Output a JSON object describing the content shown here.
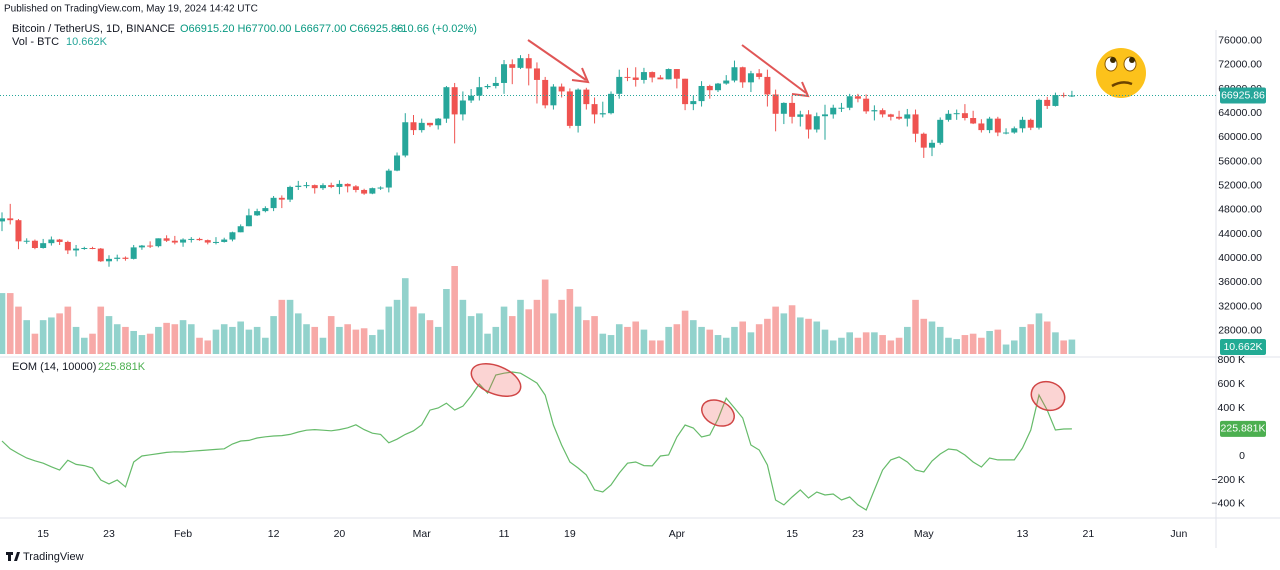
{
  "header": {
    "published": "Published on TradingView.com, May 19, 2024 14:42 UTC"
  },
  "footer": {
    "brand": "TradingView"
  },
  "chart_data": {
    "type": "candlestick",
    "title": "Bitcoin / TetherUS, 1D, BINANCE",
    "legend_ohlc": "O66915.20 H67700.00 L66677.00 C66925.86",
    "legend_change": "+10.66 (+0.02%)",
    "up_color": "#26a69a",
    "down_color": "#ef5350",
    "ylim": [
      24000,
      77760
    ],
    "yticks": [
      {
        "value": 76000,
        "label": "76000.00"
      },
      {
        "value": 72000,
        "label": "72000.00"
      },
      {
        "value": 68000,
        "label": "68000.00"
      },
      {
        "value": 64000,
        "label": "64000.00"
      },
      {
        "value": 60000,
        "label": "60000.00"
      },
      {
        "value": 56000,
        "label": "56000.00"
      },
      {
        "value": 52000,
        "label": "52000.00"
      },
      {
        "value": 48000,
        "label": "48000.00"
      },
      {
        "value": 44000,
        "label": "44000.00"
      },
      {
        "value": 40000,
        "label": "40000.00"
      },
      {
        "value": 36000,
        "label": "36000.00"
      },
      {
        "value": 32000,
        "label": "32000.00"
      },
      {
        "value": 28000,
        "label": "28000.00"
      }
    ],
    "grid": false,
    "xticks": [
      {
        "value": 5,
        "label": "15"
      },
      {
        "value": 13,
        "label": "23"
      },
      {
        "value": 22,
        "label": "Feb"
      },
      {
        "value": 33,
        "label": "12"
      },
      {
        "value": 41,
        "label": "20"
      },
      {
        "value": 51,
        "label": "Mar"
      },
      {
        "value": 61,
        "label": "11"
      },
      {
        "value": 69,
        "label": "19"
      },
      {
        "value": 82,
        "label": "Apr"
      },
      {
        "value": 96,
        "label": "15"
      },
      {
        "value": 104,
        "label": "23"
      },
      {
        "value": 112,
        "label": "May"
      },
      {
        "value": 124,
        "label": "13"
      },
      {
        "value": 132,
        "label": "21"
      },
      {
        "value": 143,
        "label": "Jun"
      }
    ],
    "candles": [
      [
        46100,
        47600,
        44500,
        46600
      ],
      [
        46600,
        49000,
        45600,
        46300
      ],
      [
        46300,
        46500,
        41500,
        42800
      ],
      [
        42800,
        43300,
        42400,
        42900
      ],
      [
        42900,
        43100,
        41500,
        41700
      ],
      [
        41700,
        43200,
        41600,
        42500
      ],
      [
        42500,
        43600,
        42100,
        43100
      ],
      [
        43100,
        43200,
        42200,
        42700
      ],
      [
        42700,
        42900,
        40700,
        41300
      ],
      [
        41300,
        42200,
        40300,
        41600
      ],
      [
        41600,
        41900,
        41400,
        41700
      ],
      [
        41700,
        41900,
        41500,
        41600
      ],
      [
        41600,
        41700,
        39400,
        39500
      ],
      [
        39500,
        40500,
        38600,
        39900
      ],
      [
        39900,
        40600,
        39500,
        40100
      ],
      [
        40100,
        40300,
        39600,
        39900
      ],
      [
        39900,
        42200,
        39800,
        41800
      ],
      [
        41800,
        42200,
        41400,
        42100
      ],
      [
        42100,
        42800,
        41700,
        42000
      ],
      [
        42000,
        43300,
        41800,
        43300
      ],
      [
        43300,
        43800,
        42700,
        42900
      ],
      [
        42900,
        43700,
        42300,
        42600
      ],
      [
        42600,
        43300,
        41900,
        43100
      ],
      [
        43100,
        43500,
        42600,
        43200
      ],
      [
        43200,
        43400,
        42900,
        43000
      ],
      [
        43000,
        43100,
        42300,
        42600
      ],
      [
        42600,
        43500,
        42300,
        42700
      ],
      [
        42700,
        43400,
        42600,
        43100
      ],
      [
        43100,
        44400,
        42800,
        44300
      ],
      [
        44300,
        45600,
        44300,
        45300
      ],
      [
        45300,
        48200,
        45300,
        47100
      ],
      [
        47100,
        48200,
        47000,
        47800
      ],
      [
        47800,
        48600,
        47600,
        48300
      ],
      [
        48300,
        50300,
        47800,
        50000
      ],
      [
        50000,
        50400,
        48300,
        49700
      ],
      [
        49700,
        52000,
        49300,
        51800
      ],
      [
        51800,
        52800,
        51300,
        52000
      ],
      [
        52000,
        52600,
        51600,
        52100
      ],
      [
        52100,
        52200,
        50700,
        51600
      ],
      [
        51600,
        52400,
        51300,
        52100
      ],
      [
        52100,
        52500,
        51600,
        51800
      ],
      [
        51800,
        52900,
        50600,
        52300
      ],
      [
        52300,
        52400,
        50900,
        51900
      ],
      [
        51900,
        52100,
        50900,
        51300
      ],
      [
        51300,
        51500,
        50500,
        50700
      ],
      [
        50700,
        51700,
        50600,
        51600
      ],
      [
        51600,
        51900,
        51300,
        51700
      ],
      [
        51700,
        54800,
        50900,
        54500
      ],
      [
        54500,
        57500,
        54400,
        57000
      ],
      [
        57000,
        64000,
        56700,
        62500
      ],
      [
        62500,
        63700,
        60400,
        61200
      ],
      [
        61200,
        63100,
        60800,
        62400
      ],
      [
        62400,
        62400,
        61700,
        62000
      ],
      [
        62000,
        63200,
        61300,
        63100
      ],
      [
        63100,
        68500,
        62400,
        68300
      ],
      [
        68300,
        69000,
        59000,
        63800
      ],
      [
        63800,
        67600,
        62800,
        66100
      ],
      [
        66100,
        68000,
        65700,
        66900
      ],
      [
        66900,
        70000,
        66100,
        68300
      ],
      [
        68300,
        68800,
        68000,
        68500
      ],
      [
        68500,
        70000,
        68100,
        69000
      ],
      [
        69000,
        72800,
        67200,
        72100
      ],
      [
        72100,
        72900,
        68800,
        71500
      ],
      [
        71500,
        73600,
        71300,
        73100
      ],
      [
        73100,
        73800,
        68600,
        71400
      ],
      [
        71400,
        72400,
        65600,
        69500
      ],
      [
        69500,
        70000,
        64800,
        65300
      ],
      [
        65300,
        68800,
        64600,
        68400
      ],
      [
        68400,
        68900,
        66600,
        67600
      ],
      [
        67600,
        68100,
        61500,
        61900
      ],
      [
        61900,
        68100,
        60800,
        67900
      ],
      [
        67900,
        68200,
        64600,
        65500
      ],
      [
        65500,
        66600,
        62300,
        63800
      ],
      [
        63800,
        65900,
        63300,
        64000
      ],
      [
        64000,
        67600,
        63800,
        67200
      ],
      [
        67200,
        71200,
        66400,
        70000
      ],
      [
        70000,
        71500,
        69300,
        69900
      ],
      [
        69900,
        71600,
        68400,
        69500
      ],
      [
        69500,
        71500,
        68900,
        70800
      ],
      [
        70800,
        70900,
        69100,
        69900
      ],
      [
        69900,
        70300,
        69600,
        69600
      ],
      [
        69600,
        71400,
        69600,
        71300
      ],
      [
        71300,
        71300,
        68100,
        69700
      ],
      [
        69700,
        69700,
        64500,
        65500
      ],
      [
        65500,
        66900,
        64500,
        66000
      ],
      [
        66000,
        69300,
        65100,
        68500
      ],
      [
        68500,
        68700,
        66400,
        67800
      ],
      [
        67800,
        69000,
        67500,
        68900
      ],
      [
        68900,
        70300,
        68700,
        69400
      ],
      [
        69400,
        72700,
        69100,
        71600
      ],
      [
        71600,
        71700,
        68200,
        69100
      ],
      [
        69100,
        71000,
        67500,
        70600
      ],
      [
        70600,
        71300,
        69600,
        70000
      ],
      [
        70000,
        71200,
        65100,
        67100
      ],
      [
        67100,
        67900,
        61000,
        63900
      ],
      [
        63900,
        65800,
        62200,
        65700
      ],
      [
        65700,
        66900,
        62300,
        63400
      ],
      [
        63400,
        64400,
        61800,
        63800
      ],
      [
        63800,
        64500,
        59800,
        61300
      ],
      [
        61300,
        64100,
        60800,
        63500
      ],
      [
        63500,
        65400,
        59600,
        63800
      ],
      [
        63800,
        65400,
        63100,
        64900
      ],
      [
        64900,
        65700,
        64200,
        64900
      ],
      [
        64900,
        67200,
        64500,
        66800
      ],
      [
        66800,
        67200,
        65800,
        66400
      ],
      [
        66400,
        67100,
        63900,
        64300
      ],
      [
        64300,
        65300,
        62800,
        64500
      ],
      [
        64500,
        64800,
        63300,
        63800
      ],
      [
        63800,
        63900,
        62800,
        63400
      ],
      [
        63400,
        64400,
        62900,
        63100
      ],
      [
        63100,
        64700,
        61800,
        63800
      ],
      [
        63800,
        64600,
        59200,
        60600
      ],
      [
        60600,
        60800,
        56600,
        58300
      ],
      [
        58300,
        59600,
        56900,
        59100
      ],
      [
        59100,
        63300,
        58800,
        62900
      ],
      [
        62900,
        64500,
        62600,
        63900
      ],
      [
        63900,
        64600,
        62900,
        64000
      ],
      [
        64000,
        65500,
        62800,
        63200
      ],
      [
        63200,
        64400,
        62200,
        62300
      ],
      [
        62300,
        63000,
        60800,
        61200
      ],
      [
        61200,
        63400,
        60700,
        63100
      ],
      [
        63100,
        63400,
        60200,
        60800
      ],
      [
        60800,
        61500,
        60500,
        60800
      ],
      [
        60800,
        61800,
        60600,
        61500
      ],
      [
        61500,
        63400,
        60800,
        62900
      ],
      [
        62900,
        63100,
        61200,
        61600
      ],
      [
        61600,
        66400,
        61300,
        66200
      ],
      [
        66200,
        66700,
        64700,
        65200
      ],
      [
        65200,
        67400,
        65100,
        67000
      ],
      [
        67000,
        67400,
        66600,
        66915.2
      ],
      [
        66915.2,
        67700,
        66677,
        66925.86
      ]
    ],
    "volume_name": "Vol - BTC",
    "volume_label": "10.662K",
    "volume": [
      45,
      45,
      35,
      25,
      15,
      25,
      27,
      30,
      35,
      20,
      12,
      15,
      35,
      28,
      22,
      20,
      17,
      14,
      15,
      20,
      23,
      22,
      25,
      22,
      12,
      10,
      18,
      22,
      20,
      24,
      18,
      20,
      12,
      28,
      40,
      40,
      30,
      22,
      20,
      12,
      28,
      20,
      22,
      18,
      19,
      14,
      18,
      35,
      40,
      56,
      35,
      30,
      25,
      20,
      48,
      65,
      40,
      28,
      30,
      15,
      20,
      35,
      28,
      40,
      33,
      40,
      55,
      30,
      40,
      48,
      35,
      25,
      28,
      15,
      14,
      22,
      20,
      24,
      18,
      10,
      10,
      20,
      22,
      32,
      25,
      20,
      18,
      14,
      12,
      20,
      24,
      16,
      22,
      26,
      35,
      30,
      36,
      27,
      26,
      24,
      18,
      10,
      12,
      16,
      12,
      16,
      16,
      14,
      10,
      12,
      20,
      40,
      26,
      24,
      20,
      12,
      11,
      14,
      15,
      12,
      17,
      18,
      7,
      10,
      20,
      22,
      30,
      24,
      16,
      10,
      10.662
    ],
    "eom": {
      "type": "line",
      "name": "EOM (14, 10000)",
      "color": "#66bb6a",
      "value_label": "225.881K",
      "ylim": [
        -492,
        817
      ],
      "yticks": [
        {
          "value": 800,
          "label": "800 K"
        },
        {
          "value": 600,
          "label": "600 K"
        },
        {
          "value": 400,
          "label": "400 K"
        },
        0,
        {
          "value": -200,
          "label": "−200 K"
        },
        {
          "value": -400,
          "label": "−400 K"
        }
      ],
      "values": [
        125,
        60,
        20,
        -17,
        -40,
        -60,
        -90,
        -117,
        -35,
        -70,
        -80,
        -100,
        -200,
        -233,
        -200,
        -258,
        -50,
        0,
        10,
        20,
        30,
        35,
        33,
        40,
        45,
        50,
        55,
        60,
        100,
        125,
        130,
        150,
        160,
        167,
        170,
        180,
        200,
        215,
        220,
        215,
        210,
        220,
        235,
        260,
        220,
        190,
        180,
        110,
        140,
        180,
        210,
        260,
        383,
        400,
        440,
        383,
        415,
        500,
        600,
        525,
        675,
        690,
        700,
        690,
        650,
        608,
        508,
        258,
        92,
        -50,
        -100,
        -158,
        -283,
        -300,
        -242,
        -142,
        -60,
        -50,
        -80,
        -83,
        0,
        8,
        158,
        258,
        233,
        158,
        175,
        308,
        483,
        400,
        317,
        92,
        50,
        -75,
        -367,
        -408,
        -342,
        -283,
        -350,
        -300,
        -325,
        -317,
        -367,
        -342,
        -408,
        -450,
        -283,
        -117,
        -33,
        -8,
        -50,
        -117,
        -133,
        -42,
        17,
        58,
        50,
        8,
        -50,
        -92,
        -17,
        -33,
        -33,
        -33,
        67,
        217,
        508,
        383,
        217,
        225,
        225.881
      ]
    }
  }
}
